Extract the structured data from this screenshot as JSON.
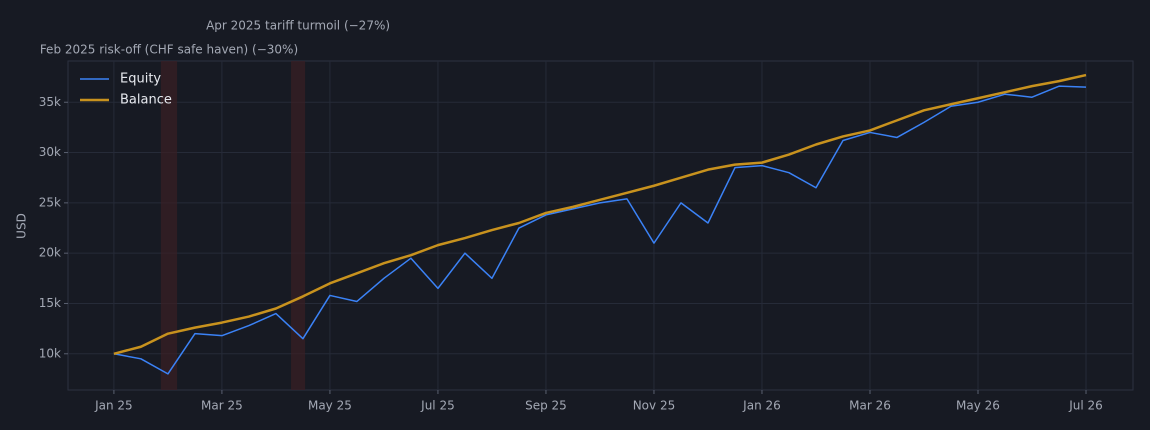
{
  "chart_data": {
    "type": "line",
    "ylabel": "USD",
    "x": [
      0,
      0.5,
      1,
      1.5,
      2,
      2.5,
      3,
      3.5,
      4,
      4.5,
      5,
      5.5,
      6,
      6.5,
      7,
      7.5,
      8,
      8.5,
      9,
      9.5,
      10,
      10.5,
      11,
      11.5,
      12,
      12.5,
      13,
      13.5,
      14,
      14.5,
      15,
      15.5,
      16,
      16.5,
      17,
      17.5,
      18
    ],
    "series": [
      {
        "name": "Equity",
        "color": "#3b82f6",
        "values": [
          10000,
          9500,
          8000,
          12000,
          11800,
          12800,
          14000,
          11500,
          15800,
          15200,
          17500,
          19500,
          16500,
          20000,
          17500,
          22500,
          23800,
          24400,
          25000,
          25400,
          21000,
          25000,
          23000,
          28500,
          28700,
          28000,
          26500,
          31200,
          32000,
          31500,
          33000,
          34600,
          35000,
          35800,
          35500,
          36600,
          36500
        ]
      },
      {
        "name": "Balance",
        "color": "#c8921e",
        "values": [
          10000,
          10700,
          12000,
          12600,
          13100,
          13700,
          14500,
          15700,
          17000,
          18000,
          19000,
          19800,
          20800,
          21500,
          22300,
          23000,
          24000,
          24600,
          25300,
          26000,
          26700,
          27500,
          28300,
          28800,
          29000,
          29800,
          30800,
          31600,
          32200,
          33200,
          34200,
          34800,
          35400,
          36000,
          36600,
          37100,
          37700
        ]
      }
    ],
    "shaded_regions": [
      {
        "label": "Feb 2025 risk-off (CHF safe haven)  (−30%)",
        "x0": 0.87,
        "x1": 1.17
      },
      {
        "label": "Apr 2025 tariff turmoil  (−27%)",
        "x0": 3.28,
        "x1": 3.54
      }
    ],
    "xlim": [
      -0.85,
      18.87
    ],
    "xticks": [
      {
        "value": 0,
        "label": "Jan 25"
      },
      {
        "value": 2,
        "label": "Mar 25"
      },
      {
        "value": 4,
        "label": "May 25"
      },
      {
        "value": 6,
        "label": "Jul 25"
      },
      {
        "value": 8,
        "label": "Sep 25"
      },
      {
        "value": 10,
        "label": "Nov 25"
      },
      {
        "value": 12,
        "label": "Jan 26"
      },
      {
        "value": 14,
        "label": "Mar 26"
      },
      {
        "value": 16,
        "label": "May 26"
      },
      {
        "value": 18,
        "label": "Jul 26"
      }
    ],
    "ylim": [
      6400,
      39100
    ],
    "yticks": [
      {
        "value": 10000,
        "label": "10k"
      },
      {
        "value": 15000,
        "label": "15k"
      },
      {
        "value": 20000,
        "label": "20k"
      },
      {
        "value": 25000,
        "label": "25k"
      },
      {
        "value": 30000,
        "label": "30k"
      },
      {
        "value": 35000,
        "label": "35k"
      }
    ],
    "grid": true,
    "legend": "upper-left"
  }
}
